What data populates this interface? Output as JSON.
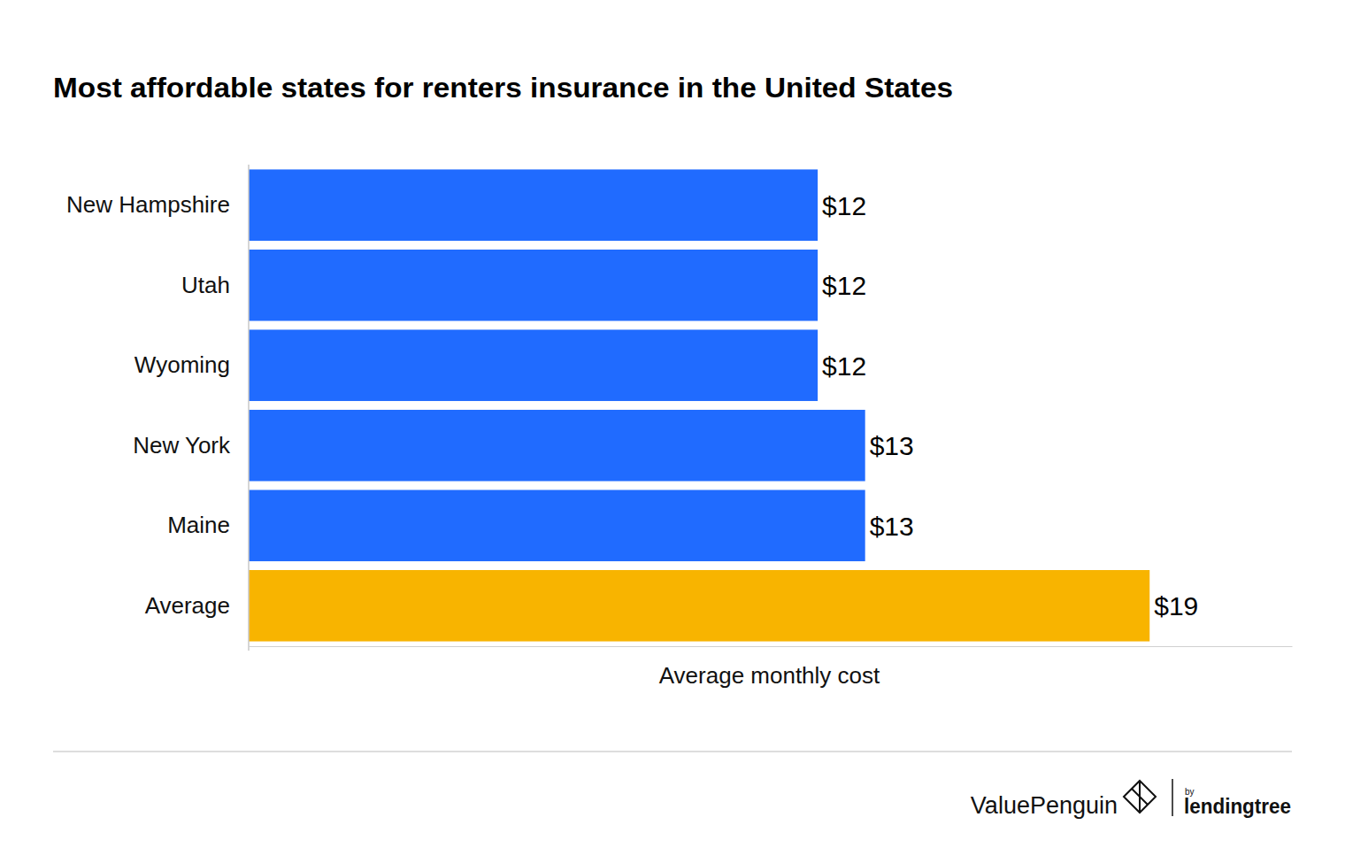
{
  "chart_data": {
    "type": "bar",
    "orientation": "horizontal",
    "title": "Most affordable states for renters insurance in the United States",
    "xlabel": "Average monthly cost",
    "categories": [
      "New Hampshire",
      "Utah",
      "Wyoming",
      "New York",
      "Maine",
      "Average"
    ],
    "values": [
      12,
      12,
      12,
      13,
      13,
      19
    ],
    "value_labels": [
      "$12",
      "$12",
      "$12",
      "$13",
      "$13",
      "$19"
    ],
    "colors": [
      "#206bff",
      "#206bff",
      "#206bff",
      "#206bff",
      "#206bff",
      "#f8b400"
    ],
    "xlim": [
      0,
      22
    ],
    "xticks": [],
    "grid": false,
    "data_labels": true,
    "tick_labels": "y"
  },
  "footer": {
    "brand": "ValuePenguin",
    "by": "by",
    "partner": "lendingtree"
  }
}
